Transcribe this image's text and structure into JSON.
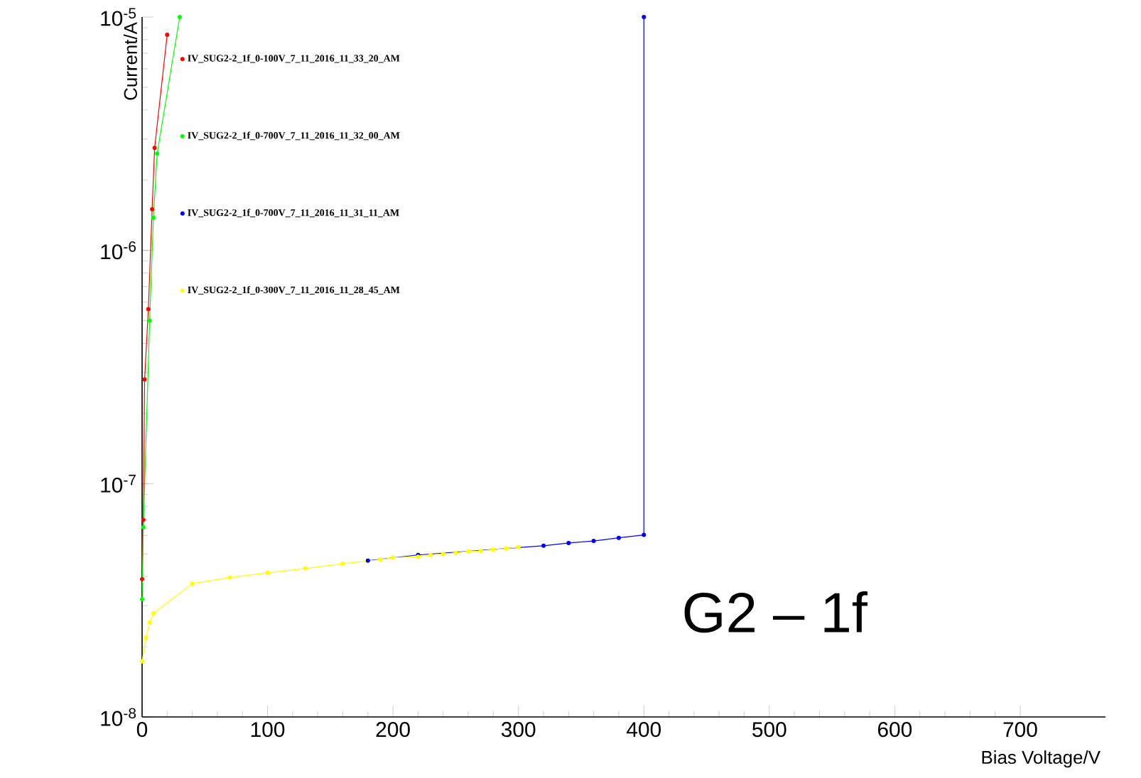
{
  "chart_data": {
    "type": "line",
    "xlabel": "Bias Voltage/V",
    "ylabel": "Current/A",
    "xlim": [
      0,
      768
    ],
    "ylim": [
      1e-08,
      1e-05
    ],
    "log": "y",
    "marker": "circle",
    "legend": "top left",
    "grid": false,
    "xticks": [
      0,
      100,
      200,
      300,
      400,
      500,
      600,
      700
    ],
    "yticks": [
      {
        "value": 1e-08,
        "label": "10$^{-8}$"
      },
      {
        "value": 1e-07,
        "label": "10$^{-7}$"
      },
      {
        "value": 1e-06,
        "label": "10$^{-6}$"
      },
      {
        "value": 1e-05,
        "label": "10$^{-5}$"
      }
    ],
    "annotations": [
      "G2 – 1f"
    ],
    "series": [
      {
        "name": "IV_SUG2-2_1f_0-100V_7_11_2016_11_33_20_AM",
        "color": "#ff0000",
        "x": [
          0,
          1,
          2,
          5,
          8,
          10,
          20
        ],
        "values": [
          3.9e-08,
          7e-08,
          2.8e-07,
          5.6e-07,
          1.5e-06,
          2.75e-06,
          8.4e-06
        ]
      },
      {
        "name": "IV_SUG2-2_1f_0-700V_7_11_2016_11_32_00_AM",
        "color": "#00ff00",
        "x": [
          0,
          1,
          6,
          9,
          12,
          30
        ],
        "values": [
          3.2e-08,
          6.5e-08,
          5e-07,
          1.38e-06,
          2.6e-06,
          1e-05
        ]
      },
      {
        "name": "IV_SUG2-2_1f_0-700V_7_11_2016_11_31_11_AM",
        "color": "#0000ff",
        "x": [
          180,
          200,
          220,
          240,
          260,
          280,
          300,
          320,
          340,
          360,
          380,
          400,
          400
        ],
        "values": [
          4.68e-08,
          null,
          4.95e-08,
          null,
          null,
          null,
          null,
          5.42e-08,
          5.57e-08,
          5.68e-08,
          5.86e-08,
          6.03e-08,
          1e-05
        ]
      },
      {
        "name": "IV_SUG2-2_1f_0-300V_7_11_2016_11_28_45_AM",
        "color": "#ffff00",
        "x": [
          0,
          3,
          6,
          9,
          40,
          70,
          100,
          130,
          160,
          190,
          200,
          220,
          230,
          240,
          250,
          260,
          270,
          280,
          290,
          300
        ],
        "values": [
          1.73e-08,
          2.19e-08,
          2.54e-08,
          2.78e-08,
          3.73e-08,
          3.96e-08,
          4.15e-08,
          4.33e-08,
          4.54e-08,
          4.73e-08,
          4.82e-08,
          4.86e-08,
          4.95e-08,
          5e-08,
          5.05e-08,
          5.13e-08,
          5.15e-08,
          5.22e-08,
          5.27e-08,
          5.35e-08
        ]
      }
    ]
  }
}
